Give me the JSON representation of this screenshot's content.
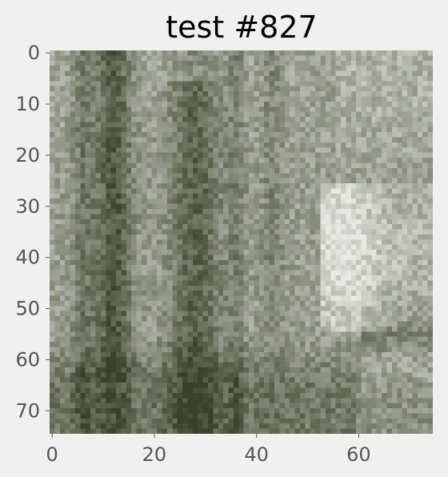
{
  "chart_data": {
    "type": "heatmap",
    "title": "test #827",
    "xlabel": "",
    "ylabel": "",
    "grid": false,
    "image_size": {
      "rows": 75,
      "cols": 75
    },
    "xlim": [
      -0.5,
      74.5
    ],
    "ylim": [
      74.5,
      -0.5
    ],
    "x_ticks": [
      0,
      20,
      40,
      60
    ],
    "x_tick_labels": [
      "0",
      "20",
      "40",
      "60"
    ],
    "y_ticks": [
      0,
      10,
      20,
      30,
      40,
      50,
      60,
      70
    ],
    "y_tick_labels": [
      "0",
      "10",
      "20",
      "30",
      "40",
      "50",
      "60",
      "70"
    ],
    "colormap": {
      "dark": "#3a4128",
      "light": "#e8e9e4"
    },
    "content": "grayscale-green forest photograph: dark tree trunks near columns 10-14 and 25-32, bright clearing near columns 52-70 rows 25-55, dark undergrowth rows 55-74"
  }
}
